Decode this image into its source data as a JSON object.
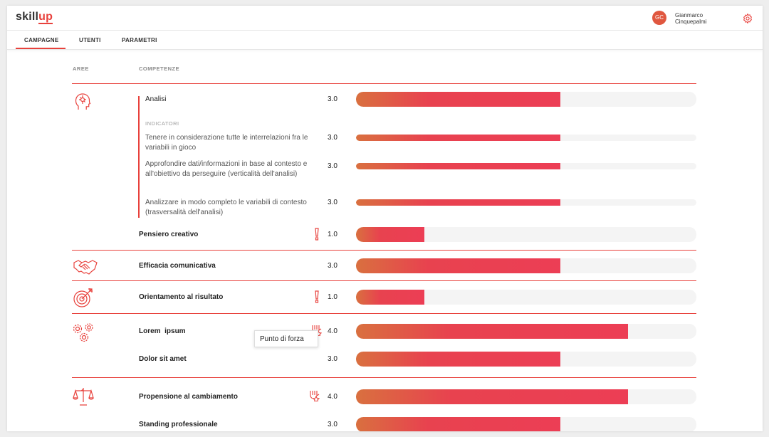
{
  "app": {
    "logo_prefix": "skill",
    "logo_suffix": "up"
  },
  "user": {
    "initials": "GC",
    "first_name": "Gianmarco",
    "last_name": "Cinquepalmi"
  },
  "tabs": [
    {
      "label": "CAMPAGNE",
      "active": true
    },
    {
      "label": "UTENTI",
      "active": false
    },
    {
      "label": "PARAMETRI",
      "active": false
    }
  ],
  "columns": {
    "areas": "AREE",
    "competences": "COMPETENZE"
  },
  "indicators_label": "INDICATORI",
  "tooltip": "Punto di forza",
  "max_score": 5,
  "colors": {
    "accent": "#e8413c",
    "bar_start": "#d9703f",
    "bar_end": "#ec3e55",
    "track": "#f4f4f4"
  },
  "rows": [
    {
      "area_icon": "brain-head-icon",
      "label": "Analisi",
      "score": "3.0",
      "value": 3.0,
      "bold": false,
      "flag": ""
    },
    {
      "label": "Tenere in considerazione tutte le interrelazioni fra le variabili in gioco",
      "score": "3.0",
      "value": 3.0,
      "indicator": true
    },
    {
      "label": "Approfondire dati/informazioni in base al contesto e all'obiettivo da perseguire (verticalità dell'analisi)",
      "score": "3.0",
      "value": 3.0,
      "indicator": true
    },
    {
      "label": "Analizzare in modo completo le variabili di contesto (trasversalità dell'analisi)",
      "score": "3.0",
      "value": 3.0,
      "indicator": true
    },
    {
      "label": "Pensiero creativo",
      "score": "1.0",
      "value": 1.0,
      "bold": true,
      "flag": "warning"
    },
    {
      "area_icon": "handshake-icon",
      "label": "Efficacia comunicativa",
      "score": "3.0",
      "value": 3.0,
      "bold": true,
      "flag": ""
    },
    {
      "area_icon": "target-icon",
      "label": "Orientamento al risultato",
      "score": "1.0",
      "value": 1.0,
      "bold": true,
      "flag": "warning"
    },
    {
      "area_icon": "gears-icon",
      "label": "Lorem  ipsum",
      "score": "4.0",
      "value": 4.0,
      "bold": true,
      "flag": "strength"
    },
    {
      "label": "Dolor sit amet",
      "score": "3.0",
      "value": 3.0,
      "bold": true,
      "flag": ""
    },
    {
      "area_icon": "scales-icon",
      "label": "Propensione al cambiamento",
      "score": "4.0",
      "value": 4.0,
      "bold": true,
      "flag": "strength"
    },
    {
      "label": "Standing professionale",
      "score": "3.0",
      "value": 3.0,
      "bold": true,
      "flag": ""
    }
  ]
}
